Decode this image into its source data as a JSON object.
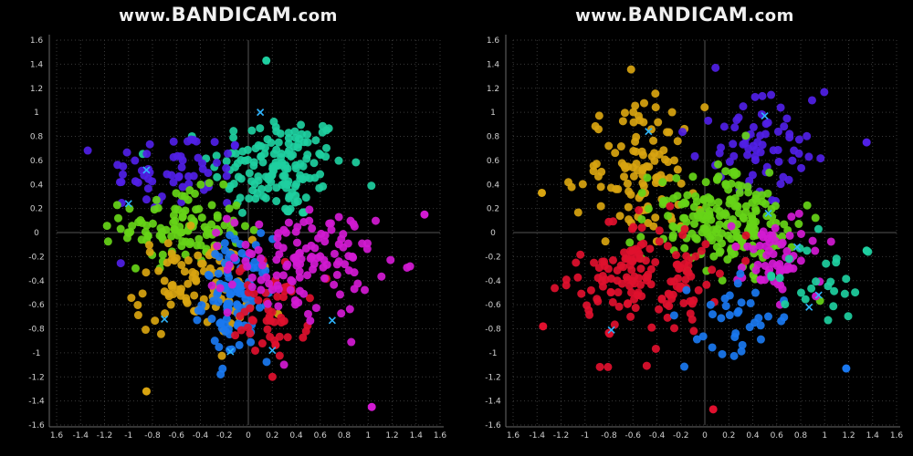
{
  "watermark": {
    "prefix": "www.",
    "brand": "BANDICAM",
    "suffix": ".com"
  },
  "cluster_colors": {
    "blue": "#1a78f0",
    "teal": "#1ecfa0",
    "green": "#66d418",
    "gold": "#d8a410",
    "magenta": "#d21ad2",
    "red": "#e0102e",
    "purple": "#5020e6",
    "center": "#2fb5ff"
  },
  "chart_data": [
    {
      "type": "scatter",
      "title": "",
      "xlabel": "",
      "ylabel": "",
      "xlim": [
        -1.6,
        1.6
      ],
      "ylim": [
        -1.6,
        1.6
      ],
      "xticks": [
        "1.6",
        "-1.4",
        "-1.2",
        "-1",
        "-0.8",
        "-0.6",
        "-0.4",
        "-0.2",
        "0",
        "0.2",
        "0.4",
        "0.6",
        "0.8",
        "1",
        "1.2",
        "1.4",
        "1.6"
      ],
      "yticks": [
        "1.6",
        "1.4",
        "1.2",
        "1",
        "0.8",
        "0.6",
        "0.4",
        "0.2",
        "0",
        "-0.2",
        "-0.4",
        "-0.6",
        "-0.8",
        "-1",
        "-1.2",
        "-1.4",
        "-1.6"
      ],
      "grid": true,
      "legend": "none",
      "clusters": [
        {
          "color": "teal",
          "center": [
            0.1,
            1.0
          ],
          "count": 150,
          "spread": [
            0.28,
            0.22
          ],
          "mean": [
            0.25,
            0.55
          ]
        },
        {
          "color": "purple",
          "center": [
            -0.85,
            0.52
          ],
          "count": 60,
          "spread": [
            0.3,
            0.18
          ],
          "mean": [
            -0.6,
            0.5
          ]
        },
        {
          "color": "green",
          "center": [
            -1.0,
            0.24
          ],
          "count": 110,
          "spread": [
            0.25,
            0.15
          ],
          "mean": [
            -0.55,
            0.05
          ]
        },
        {
          "color": "gold",
          "center": [
            -0.7,
            -0.72
          ],
          "count": 90,
          "spread": [
            0.25,
            0.2
          ],
          "mean": [
            -0.45,
            -0.45
          ]
        },
        {
          "color": "blue",
          "center": [
            -0.15,
            -0.99
          ],
          "count": 100,
          "spread": [
            0.14,
            0.25
          ],
          "mean": [
            -0.1,
            -0.55
          ]
        },
        {
          "color": "red",
          "center": [
            0.2,
            -0.98
          ],
          "count": 55,
          "spread": [
            0.15,
            0.2
          ],
          "mean": [
            0.2,
            -0.65
          ]
        },
        {
          "color": "magenta",
          "center": [
            0.7,
            -0.73
          ],
          "count": 130,
          "spread": [
            0.3,
            0.22
          ],
          "mean": [
            0.45,
            -0.25
          ]
        }
      ],
      "outliers": [
        {
          "color": "gold",
          "x": -0.85,
          "y": -1.32
        },
        {
          "color": "magenta",
          "x": 1.03,
          "y": -1.45
        },
        {
          "color": "magenta",
          "x": 1.47,
          "y": 0.15
        },
        {
          "color": "teal",
          "x": 0.15,
          "y": 1.43
        }
      ]
    },
    {
      "type": "scatter",
      "title": "",
      "xlabel": "",
      "ylabel": "",
      "xlim": [
        -1.6,
        1.6
      ],
      "ylim": [
        -1.6,
        1.6
      ],
      "xticks": [
        "1.6",
        "-1.4",
        "-1.2",
        "-1",
        "-0.8",
        "-0.6",
        "-0.4",
        "-0.2",
        "0",
        "0.2",
        "0.4",
        "0.6",
        "0.8",
        "1",
        "1.2",
        "1.4",
        "1.6"
      ],
      "yticks": [
        "1.6",
        "1.4",
        "1.2",
        "1",
        "0.8",
        "0.6",
        "0.4",
        "0.2",
        "0",
        "-0.2",
        "-0.4",
        "-0.6",
        "-0.8",
        "-1",
        "-1.2",
        "-1.4",
        "-1.6"
      ],
      "grid": true,
      "legend": "none",
      "clusters": [
        {
          "color": "gold",
          "center": [
            -0.47,
            0.84
          ],
          "count": 110,
          "spread": [
            0.25,
            0.28
          ],
          "mean": [
            -0.55,
            0.5
          ]
        },
        {
          "color": "purple",
          "center": [
            0.5,
            0.97
          ],
          "count": 70,
          "spread": [
            0.28,
            0.2
          ],
          "mean": [
            0.45,
            0.75
          ]
        },
        {
          "color": "green",
          "center": [
            0.53,
            0.16
          ],
          "count": 200,
          "spread": [
            0.3,
            0.2
          ],
          "mean": [
            0.15,
            0.1
          ]
        },
        {
          "color": "red",
          "center": [
            -0.78,
            -0.81
          ],
          "count": 150,
          "spread": [
            0.3,
            0.25
          ],
          "mean": [
            -0.45,
            -0.4
          ]
        },
        {
          "color": "magenta",
          "center": [
            0.77,
            -0.12
          ],
          "count": 60,
          "spread": [
            0.2,
            0.16
          ],
          "mean": [
            0.6,
            -0.2
          ]
        },
        {
          "color": "blue",
          "center": [
            0.87,
            -0.62
          ],
          "count": 35,
          "spread": [
            0.22,
            0.2
          ],
          "mean": [
            0.3,
            -0.7
          ]
        },
        {
          "color": "teal",
          "center": [
            0.95,
            -0.52
          ],
          "count": 25,
          "spread": [
            0.18,
            0.18
          ],
          "mean": [
            0.95,
            -0.35
          ]
        }
      ],
      "outliers": [
        {
          "color": "red",
          "x": 0.07,
          "y": -1.47
        },
        {
          "color": "red",
          "x": -1.35,
          "y": -0.78
        },
        {
          "color": "gold",
          "x": -1.36,
          "y": 0.33
        },
        {
          "color": "purple",
          "x": 1.35,
          "y": 0.75
        },
        {
          "color": "blue",
          "x": 1.18,
          "y": -1.13
        },
        {
          "color": "teal",
          "x": 1.35,
          "y": -0.15
        }
      ]
    }
  ]
}
